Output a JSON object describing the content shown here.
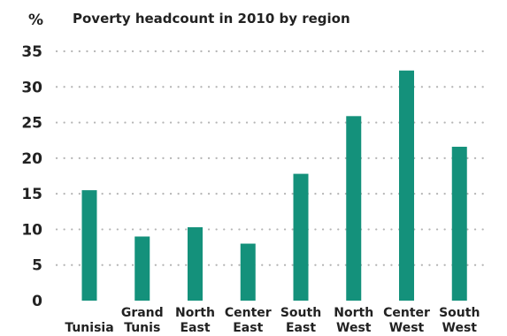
{
  "chart_data": {
    "type": "bar",
    "title": "Poverty headcount in 2010 by region",
    "unit_label": "%",
    "xlabel": "",
    "ylabel": "%",
    "ylim": [
      0,
      35
    ],
    "y_ticks": [
      0,
      5,
      10,
      15,
      20,
      25,
      30,
      35
    ],
    "grid": "dotted horizontal",
    "legend": "none",
    "bar_color": "#14917b",
    "categories": [
      {
        "lines": [
          "",
          "Tunisia"
        ]
      },
      {
        "lines": [
          "Grand",
          "Tunis"
        ]
      },
      {
        "lines": [
          "North",
          "East"
        ]
      },
      {
        "lines": [
          "Center",
          "East"
        ]
      },
      {
        "lines": [
          "South",
          "East"
        ]
      },
      {
        "lines": [
          "North",
          "West"
        ]
      },
      {
        "lines": [
          "Center",
          "West"
        ]
      },
      {
        "lines": [
          "South",
          "West"
        ]
      }
    ],
    "category_names": [
      "Tunisia",
      "Grand Tunis",
      "North East",
      "Center East",
      "South East",
      "North West",
      "Center West",
      "South West"
    ],
    "values": [
      15.5,
      9.0,
      10.3,
      8.0,
      17.8,
      25.9,
      32.3,
      21.6
    ]
  }
}
